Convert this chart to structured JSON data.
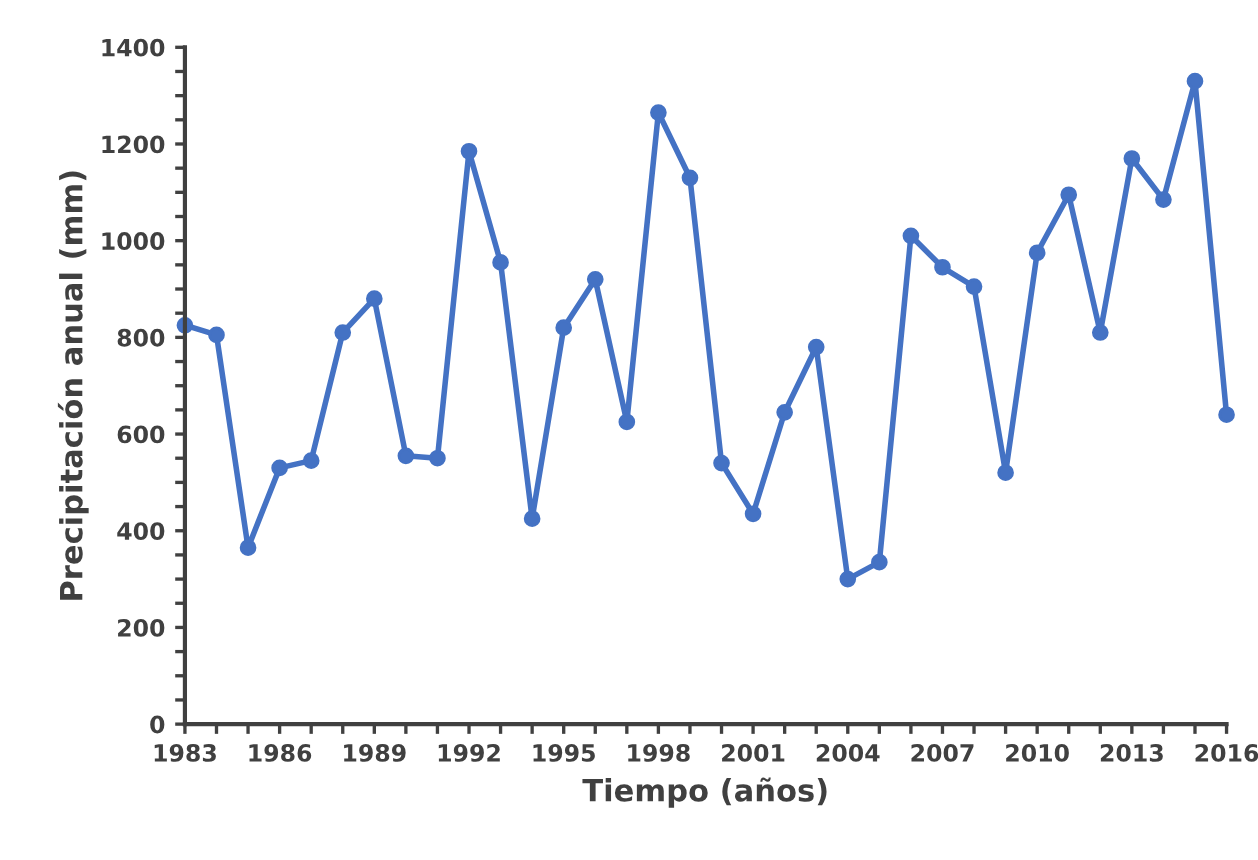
{
  "chart_data": {
    "type": "line",
    "xlabel": "Tiempo (años)",
    "ylabel": "Precipitación anual (mm)",
    "x": [
      1983,
      1984,
      1985,
      1986,
      1987,
      1988,
      1989,
      1990,
      1991,
      1992,
      1993,
      1994,
      1995,
      1996,
      1997,
      1998,
      1999,
      2000,
      2001,
      2002,
      2003,
      2004,
      2005,
      2006,
      2007,
      2008,
      2009,
      2010,
      2011,
      2012,
      2013,
      2014,
      2015,
      2016
    ],
    "series": [
      {
        "color": "#4472c4",
        "values": [
          825,
          805,
          365,
          530,
          545,
          810,
          880,
          555,
          550,
          1185,
          955,
          425,
          820,
          920,
          625,
          1265,
          1130,
          540,
          435,
          645,
          780,
          300,
          335,
          1010,
          945,
          905,
          520,
          975,
          1095,
          810,
          1170,
          1085,
          1330,
          640
        ]
      }
    ],
    "xlim": [
      1983,
      2016
    ],
    "xticks": [
      1983,
      {
        "value": 1984,
        "label": null
      },
      {
        "value": 1985,
        "label": null
      },
      1986,
      {
        "value": 1987,
        "label": null
      },
      {
        "value": 1988,
        "label": null
      },
      1989,
      {
        "value": 1990,
        "label": null
      },
      {
        "value": 1991,
        "label": null
      },
      1992,
      {
        "value": 1993,
        "label": null
      },
      {
        "value": 1994,
        "label": null
      },
      1995,
      {
        "value": 1996,
        "label": null
      },
      {
        "value": 1997,
        "label": null
      },
      1998,
      {
        "value": 1999,
        "label": null
      },
      {
        "value": 2000,
        "label": null
      },
      2001,
      {
        "value": 2002,
        "label": null
      },
      {
        "value": 2003,
        "label": null
      },
      2004,
      {
        "value": 2005,
        "label": null
      },
      {
        "value": 2006,
        "label": null
      },
      2007,
      {
        "value": 2008,
        "label": null
      },
      {
        "value": 2009,
        "label": null
      },
      2010,
      {
        "value": 2011,
        "label": null
      },
      {
        "value": 2012,
        "label": null
      },
      2013,
      {
        "value": 2014,
        "label": null
      },
      {
        "value": 2015,
        "label": null
      },
      2016
    ],
    "ylim": [
      0,
      1400
    ],
    "yticks": [
      0,
      {
        "value": 50,
        "label": null
      },
      {
        "value": 100,
        "label": null
      },
      {
        "value": 150,
        "label": null
      },
      200,
      {
        "value": 250,
        "label": null
      },
      {
        "value": 300,
        "label": null
      },
      {
        "value": 350,
        "label": null
      },
      400,
      {
        "value": 450,
        "label": null
      },
      {
        "value": 500,
        "label": null
      },
      {
        "value": 550,
        "label": null
      },
      600,
      {
        "value": 650,
        "label": null
      },
      {
        "value": 700,
        "label": null
      },
      {
        "value": 750,
        "label": null
      },
      800,
      {
        "value": 850,
        "label": null
      },
      {
        "value": 900,
        "label": null
      },
      {
        "value": 950,
        "label": null
      },
      1000,
      {
        "value": 1050,
        "label": null
      },
      {
        "value": 1100,
        "label": null
      },
      {
        "value": 1150,
        "label": null
      },
      1200,
      {
        "value": 1250,
        "label": null
      },
      {
        "value": 1300,
        "label": null
      },
      {
        "value": 1350,
        "label": null
      },
      1400
    ],
    "marker": "circle",
    "line_style": "solid",
    "grid": false
  }
}
